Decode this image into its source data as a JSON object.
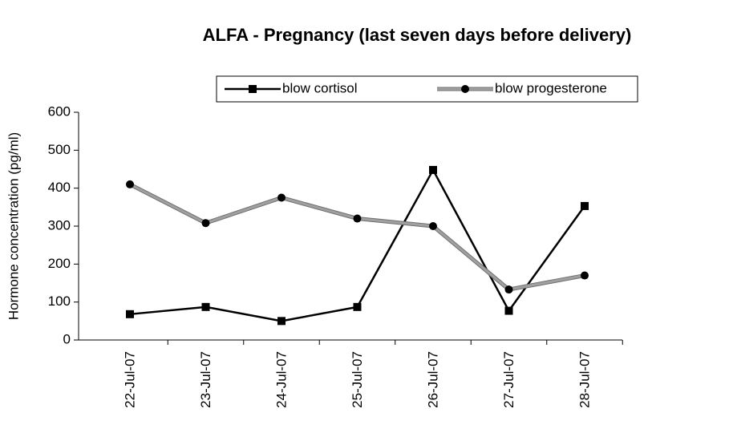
{
  "chart_data": {
    "type": "line",
    "title": "ALFA - Pregnancy (last seven days before delivery)",
    "y_label": "Hormone concentration (pg/ml)",
    "categories": [
      "22-Jul-07",
      "23-Jul-07",
      "24-Jul-07",
      "25-Jul-07",
      "26-Jul-07",
      "27-Jul-07",
      "28-Jul-07"
    ],
    "series": [
      {
        "name": "blow cortisol",
        "color": "#000000",
        "marker": "square",
        "values": [
          68,
          87,
          50,
          87,
          448,
          77,
          353
        ]
      },
      {
        "name": "blow progesterone",
        "color": "#a0a0a0",
        "marker": "circle",
        "values": [
          410,
          308,
          375,
          320,
          300,
          133,
          170
        ]
      }
    ],
    "ylim": [
      0,
      600
    ],
    "yticks": [
      0,
      100,
      200,
      300,
      400,
      500,
      600
    ],
    "grid": false
  }
}
